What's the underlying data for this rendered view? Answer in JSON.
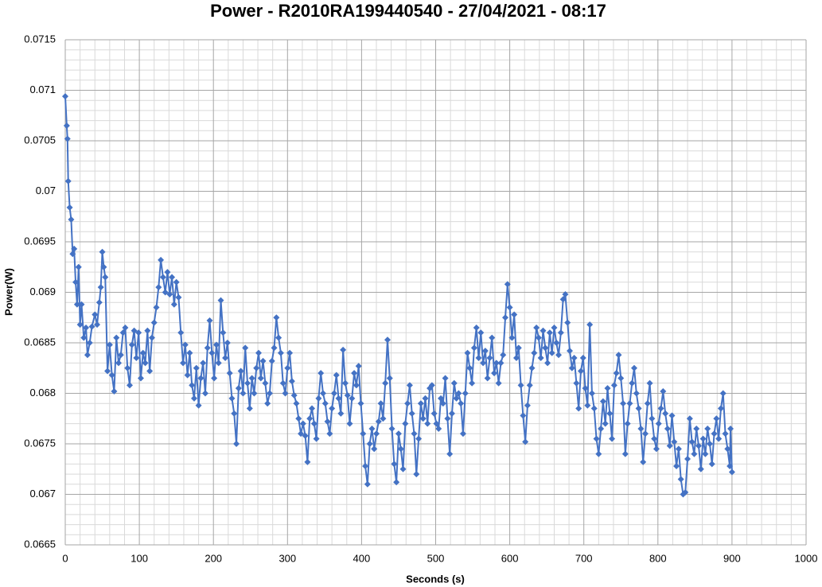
{
  "chart_data": {
    "type": "line",
    "title": "Power - R2010RA199440540 - 27/04/2021 - 08:17",
    "x_label": "Seconds (s)",
    "y_label": "Power(W)",
    "xlim": [
      0,
      1000
    ],
    "xticks": [
      0,
      100,
      200,
      300,
      400,
      500,
      600,
      700,
      800,
      900,
      1000
    ],
    "ylim": [
      0.0665,
      0.0715
    ],
    "yticks": [
      0.0665,
      0.067,
      0.0675,
      0.068,
      0.0685,
      0.069,
      0.0695,
      0.07,
      0.0705,
      0.071,
      0.0715
    ],
    "grid": true,
    "marker": "diamond",
    "x": [
      0,
      2,
      3,
      4,
      6,
      8,
      10,
      12,
      14,
      16,
      18,
      20,
      22,
      25,
      28,
      30,
      33,
      36,
      40,
      43,
      46,
      48,
      50,
      52,
      54,
      57,
      60,
      63,
      66,
      69,
      72,
      75,
      78,
      81,
      84,
      87,
      90,
      93,
      96,
      99,
      102,
      105,
      108,
      111,
      114,
      117,
      120,
      123,
      126,
      129,
      132,
      135,
      138,
      141,
      144,
      147,
      150,
      153,
      156,
      159,
      162,
      165,
      168,
      171,
      174,
      177,
      180,
      183,
      186,
      189,
      192,
      195,
      198,
      201,
      204,
      207,
      210,
      213,
      216,
      219,
      222,
      225,
      228,
      231,
      234,
      237,
      240,
      243,
      246,
      249,
      252,
      255,
      258,
      261,
      264,
      267,
      270,
      273,
      276,
      279,
      282,
      285,
      288,
      291,
      294,
      297,
      300,
      303,
      306,
      309,
      312,
      315,
      318,
      321,
      324,
      327,
      330,
      333,
      336,
      339,
      342,
      345,
      348,
      351,
      354,
      357,
      360,
      363,
      366,
      369,
      372,
      375,
      378,
      381,
      384,
      387,
      390,
      393,
      396,
      399,
      402,
      405,
      408,
      411,
      414,
      417,
      420,
      423,
      426,
      429,
      432,
      435,
      438,
      441,
      444,
      447,
      450,
      453,
      456,
      459,
      462,
      465,
      468,
      471,
      474,
      477,
      480,
      483,
      486,
      489,
      492,
      495,
      498,
      501,
      504,
      507,
      510,
      513,
      516,
      519,
      522,
      525,
      528,
      531,
      534,
      537,
      540,
      543,
      546,
      549,
      552,
      555,
      558,
      561,
      564,
      567,
      570,
      573,
      576,
      579,
      582,
      585,
      588,
      591,
      594,
      597,
      600,
      603,
      606,
      609,
      612,
      615,
      618,
      621,
      624,
      627,
      630,
      633,
      636,
      639,
      642,
      645,
      648,
      651,
      654,
      657,
      660,
      663,
      666,
      669,
      672,
      675,
      678,
      681,
      684,
      687,
      690,
      693,
      696,
      699,
      702,
      705,
      708,
      711,
      714,
      717,
      720,
      723,
      726,
      729,
      732,
      735,
      738,
      741,
      744,
      747,
      750,
      753,
      756,
      759,
      762,
      765,
      768,
      771,
      774,
      777,
      780,
      783,
      786,
      789,
      792,
      795,
      798,
      801,
      804,
      807,
      810,
      813,
      816,
      819,
      822,
      825,
      828,
      831,
      834,
      837,
      840,
      843,
      846,
      849,
      852,
      855,
      858,
      861,
      864,
      867,
      870,
      873,
      876,
      879,
      882,
      885,
      888,
      891,
      894,
      897,
      898,
      900
    ],
    "series": [
      {
        "name": "Power(W)",
        "color": "#4472c4",
        "values": [
          0.07094,
          0.07065,
          0.07052,
          0.0701,
          0.06984,
          0.06972,
          0.06938,
          0.06943,
          0.0691,
          0.06888,
          0.06925,
          0.06868,
          0.06888,
          0.06855,
          0.06865,
          0.06838,
          0.0685,
          0.06866,
          0.06878,
          0.06868,
          0.0689,
          0.06905,
          0.0694,
          0.06925,
          0.06915,
          0.06822,
          0.06848,
          0.06818,
          0.06802,
          0.06855,
          0.0683,
          0.06838,
          0.0686,
          0.06865,
          0.06825,
          0.06808,
          0.06848,
          0.06862,
          0.06835,
          0.0686,
          0.06815,
          0.0684,
          0.0683,
          0.06862,
          0.06822,
          0.06855,
          0.0687,
          0.06885,
          0.06905,
          0.06932,
          0.06915,
          0.069,
          0.0692,
          0.06898,
          0.06915,
          0.06888,
          0.0691,
          0.06895,
          0.0686,
          0.0683,
          0.06848,
          0.06818,
          0.0684,
          0.06808,
          0.06795,
          0.06825,
          0.06788,
          0.06815,
          0.0683,
          0.068,
          0.06845,
          0.06872,
          0.0684,
          0.06815,
          0.06848,
          0.0683,
          0.06892,
          0.0686,
          0.06835,
          0.0685,
          0.0682,
          0.06795,
          0.0678,
          0.0675,
          0.06805,
          0.06822,
          0.068,
          0.06845,
          0.0681,
          0.06785,
          0.06815,
          0.068,
          0.06825,
          0.0684,
          0.06815,
          0.06832,
          0.0681,
          0.0679,
          0.068,
          0.06832,
          0.06845,
          0.06875,
          0.06855,
          0.0684,
          0.0681,
          0.068,
          0.06825,
          0.0684,
          0.06812,
          0.06798,
          0.0679,
          0.06775,
          0.0676,
          0.0677,
          0.06758,
          0.06732,
          0.06775,
          0.06785,
          0.0677,
          0.06755,
          0.06795,
          0.0682,
          0.068,
          0.0679,
          0.06772,
          0.0676,
          0.06785,
          0.068,
          0.06818,
          0.06795,
          0.0678,
          0.06843,
          0.0681,
          0.06798,
          0.0677,
          0.06795,
          0.0682,
          0.06808,
          0.06827,
          0.0679,
          0.0676,
          0.06728,
          0.0671,
          0.0675,
          0.06765,
          0.06745,
          0.0676,
          0.06772,
          0.0679,
          0.06775,
          0.0681,
          0.06853,
          0.06815,
          0.06765,
          0.0673,
          0.06712,
          0.0676,
          0.06745,
          0.06725,
          0.0677,
          0.0679,
          0.06808,
          0.0678,
          0.0676,
          0.0672,
          0.06755,
          0.0679,
          0.06775,
          0.06795,
          0.0677,
          0.06805,
          0.06808,
          0.0678,
          0.0677,
          0.06765,
          0.06795,
          0.0679,
          0.06815,
          0.06775,
          0.0674,
          0.0678,
          0.0681,
          0.06795,
          0.068,
          0.0679,
          0.0676,
          0.068,
          0.0684,
          0.06825,
          0.0681,
          0.06845,
          0.06865,
          0.06835,
          0.0686,
          0.0683,
          0.06842,
          0.06815,
          0.06835,
          0.06855,
          0.0682,
          0.0683,
          0.0681,
          0.0683,
          0.06838,
          0.06875,
          0.06908,
          0.06885,
          0.06855,
          0.06878,
          0.06835,
          0.06845,
          0.06808,
          0.06778,
          0.06752,
          0.06788,
          0.06808,
          0.06825,
          0.0684,
          0.06865,
          0.06855,
          0.06835,
          0.06862,
          0.06845,
          0.0683,
          0.0686,
          0.0684,
          0.06865,
          0.0685,
          0.06838,
          0.0686,
          0.06893,
          0.06898,
          0.0687,
          0.06842,
          0.06825,
          0.06835,
          0.0681,
          0.06785,
          0.06822,
          0.06835,
          0.06805,
          0.06788,
          0.06868,
          0.068,
          0.06785,
          0.06755,
          0.0674,
          0.06765,
          0.06792,
          0.0677,
          0.06805,
          0.0678,
          0.06755,
          0.06808,
          0.0682,
          0.06838,
          0.06815,
          0.0679,
          0.0674,
          0.0677,
          0.0679,
          0.0681,
          0.06825,
          0.068,
          0.06785,
          0.06765,
          0.06732,
          0.0676,
          0.0679,
          0.0681,
          0.06775,
          0.06755,
          0.06745,
          0.0677,
          0.06785,
          0.06802,
          0.0678,
          0.06765,
          0.06748,
          0.06778,
          0.06752,
          0.06728,
          0.06745,
          0.06715,
          0.067,
          0.06702,
          0.06735,
          0.06775,
          0.06752,
          0.0674,
          0.06765,
          0.06748,
          0.06725,
          0.06755,
          0.0674,
          0.06765,
          0.0675,
          0.0673,
          0.0676,
          0.06775,
          0.06755,
          0.06785,
          0.068,
          0.0676,
          0.06745,
          0.06728,
          0.06765,
          0.06722
        ]
      }
    ]
  }
}
